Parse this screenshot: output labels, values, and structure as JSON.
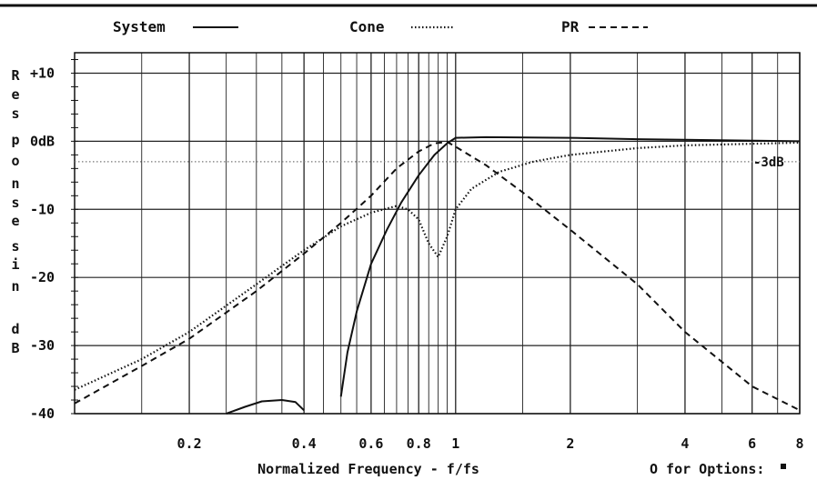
{
  "chart_data": {
    "type": "line",
    "xscale": "log",
    "xlim": [
      0.1,
      8
    ],
    "ylim": [
      -40,
      13
    ],
    "grid": true,
    "legend_position": "top",
    "xlabel": "Normalized Frequency - f/fs",
    "ylabel_letters": [
      "R",
      "e",
      "s",
      "p",
      "o",
      "n",
      "s",
      "e",
      "s",
      "i",
      "n",
      "d",
      "B"
    ],
    "x_ticks": [
      {
        "value": 0.2,
        "label": "0.2"
      },
      {
        "value": 0.4,
        "label": "0.4"
      },
      {
        "value": 0.6,
        "label": "0.6"
      },
      {
        "value": 0.8,
        "label": "0.8"
      },
      {
        "value": 1,
        "label": "1"
      },
      {
        "value": 2,
        "label": "2"
      },
      {
        "value": 4,
        "label": "4"
      },
      {
        "value": 6,
        "label": "6"
      },
      {
        "value": 8,
        "label": "8"
      }
    ],
    "y_ticks": [
      {
        "value": 10,
        "label": "+10"
      },
      {
        "value": 0,
        "label": "0dB"
      },
      {
        "value": -10,
        "label": "-10"
      },
      {
        "value": -20,
        "label": "-20"
      },
      {
        "value": -30,
        "label": "-30"
      },
      {
        "value": -40,
        "label": "-40"
      }
    ],
    "reference_line": {
      "value": -3,
      "label": "-3dB"
    },
    "series": [
      {
        "name": "System",
        "style": "solid",
        "segments": [
          [
            [
              0.25,
              -40
            ],
            [
              0.28,
              -39
            ],
            [
              0.31,
              -38.2
            ],
            [
              0.35,
              -38
            ],
            [
              0.38,
              -38.3
            ],
            [
              0.4,
              -39.5
            ]
          ],
          [
            [
              0.5,
              -37.5
            ],
            [
              0.52,
              -31
            ],
            [
              0.55,
              -25
            ],
            [
              0.6,
              -18
            ],
            [
              0.66,
              -13
            ],
            [
              0.72,
              -9
            ],
            [
              0.8,
              -5
            ],
            [
              0.88,
              -2
            ],
            [
              0.95,
              -0.3
            ],
            [
              1.0,
              0.5
            ],
            [
              1.2,
              0.6
            ],
            [
              2.0,
              0.5
            ],
            [
              3.0,
              0.3
            ],
            [
              8.0,
              0
            ]
          ]
        ]
      },
      {
        "name": "Cone",
        "style": "dotted",
        "points": [
          [
            0.1,
            -36.5
          ],
          [
            0.15,
            -32
          ],
          [
            0.2,
            -28
          ],
          [
            0.3,
            -21
          ],
          [
            0.4,
            -16
          ],
          [
            0.5,
            -12.5
          ],
          [
            0.6,
            -10.5
          ],
          [
            0.7,
            -9.5
          ],
          [
            0.75,
            -10
          ],
          [
            0.8,
            -11.5
          ],
          [
            0.85,
            -15
          ],
          [
            0.9,
            -17
          ],
          [
            0.95,
            -14
          ],
          [
            1.0,
            -10
          ],
          [
            1.1,
            -7
          ],
          [
            1.3,
            -4.5
          ],
          [
            1.6,
            -3
          ],
          [
            2.0,
            -2
          ],
          [
            3.0,
            -1
          ],
          [
            4.0,
            -0.6
          ],
          [
            8.0,
            -0.2
          ]
        ]
      },
      {
        "name": "PR",
        "style": "dashed",
        "points": [
          [
            0.1,
            -38.5
          ],
          [
            0.15,
            -33
          ],
          [
            0.2,
            -29
          ],
          [
            0.3,
            -22
          ],
          [
            0.4,
            -16.5
          ],
          [
            0.5,
            -12
          ],
          [
            0.6,
            -8
          ],
          [
            0.7,
            -4
          ],
          [
            0.8,
            -1.5
          ],
          [
            0.88,
            -0.3
          ],
          [
            0.95,
            -0.1
          ],
          [
            1.0,
            -0.8
          ],
          [
            1.2,
            -3.5
          ],
          [
            1.5,
            -7.5
          ],
          [
            2.0,
            -13
          ],
          [
            3.0,
            -21
          ],
          [
            4.0,
            -28
          ],
          [
            6.0,
            -36
          ],
          [
            8.0,
            -39.5
          ]
        ]
      }
    ]
  },
  "footer": {
    "options_prompt": "O for Options:"
  }
}
